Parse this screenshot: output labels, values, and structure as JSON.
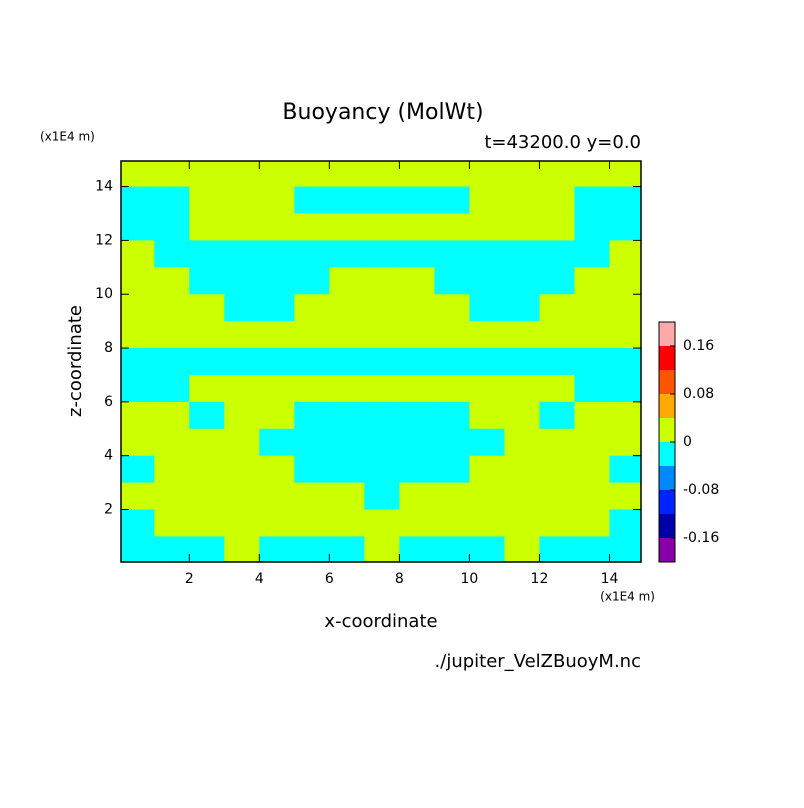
{
  "chart_data": {
    "type": "contour",
    "title": "Buoyancy (MolWt)",
    "subtitle": "t=43200.0 y=0.0",
    "x_label": "x-coordinate",
    "y_label": "z-coordinate",
    "x_units": "(x1E4 m)",
    "y_units": "(x1E4 m)",
    "source": "./jupiter_VelZBuoyM.nc",
    "xlim": [
      0.05,
      14.9
    ],
    "ylim": [
      0.05,
      14.95
    ],
    "xticks": [
      2,
      4,
      6,
      8,
      10,
      12,
      14
    ],
    "yticks": [
      2,
      4,
      6,
      8,
      10,
      12,
      14
    ],
    "x": [
      0.5,
      1.5,
      2.5,
      3.5,
      4.5,
      5.5,
      6.5,
      7.5,
      8.5,
      9.5,
      10.5,
      11.5,
      12.5,
      13.5,
      14.5
    ],
    "y": [
      14.5,
      13.5,
      12.5,
      11.5,
      10.5,
      9.5,
      8.5,
      7.5,
      6.5,
      5.5,
      4.5,
      3.5,
      2.5,
      1.5,
      0.5
    ],
    "z": [
      [
        0.02,
        0.02,
        0.02,
        0.02,
        0.02,
        0.02,
        0.02,
        0.02,
        0.02,
        0.02,
        0.02,
        0.02,
        0.02,
        0.02,
        0.02
      ],
      [
        -0.02,
        -0.02,
        0.02,
        0.02,
        0.02,
        -0.02,
        -0.02,
        -0.02,
        -0.02,
        -0.02,
        0.02,
        0.02,
        0.02,
        -0.02,
        -0.02
      ],
      [
        -0.02,
        -0.02,
        0.02,
        0.02,
        0.02,
        0.02,
        0.02,
        0.02,
        0.02,
        0.02,
        0.02,
        0.02,
        0.02,
        -0.02,
        -0.02
      ],
      [
        0.02,
        -0.02,
        -0.02,
        -0.02,
        -0.02,
        -0.02,
        -0.02,
        -0.02,
        -0.02,
        -0.02,
        -0.02,
        -0.02,
        -0.02,
        -0.02,
        0.02
      ],
      [
        0.02,
        0.02,
        -0.02,
        -0.02,
        -0.02,
        -0.02,
        0.02,
        0.02,
        0.02,
        -0.02,
        -0.02,
        -0.02,
        -0.02,
        0.02,
        0.02
      ],
      [
        0.02,
        0.02,
        0.02,
        -0.02,
        -0.02,
        0.02,
        0.02,
        0.02,
        0.02,
        0.02,
        -0.02,
        -0.02,
        0.02,
        0.02,
        0.02
      ],
      [
        0.02,
        0.02,
        0.02,
        0.02,
        0.02,
        0.02,
        0.02,
        0.02,
        0.02,
        0.02,
        0.02,
        0.02,
        0.02,
        0.02,
        0.02
      ],
      [
        -0.02,
        -0.02,
        -0.02,
        -0.02,
        -0.02,
        -0.02,
        -0.02,
        -0.02,
        -0.02,
        -0.02,
        -0.02,
        -0.02,
        -0.02,
        -0.02,
        -0.02
      ],
      [
        -0.02,
        -0.02,
        0.02,
        0.02,
        0.02,
        0.02,
        0.02,
        0.02,
        0.02,
        0.02,
        0.02,
        0.02,
        0.02,
        -0.02,
        -0.02
      ],
      [
        0.02,
        0.02,
        -0.02,
        0.02,
        0.02,
        -0.02,
        -0.02,
        -0.02,
        -0.02,
        -0.02,
        0.02,
        0.02,
        -0.02,
        0.02,
        0.02
      ],
      [
        0.02,
        0.02,
        0.02,
        0.02,
        -0.02,
        -0.02,
        -0.02,
        -0.02,
        -0.02,
        -0.02,
        -0.02,
        0.02,
        0.02,
        0.02,
        0.02
      ],
      [
        -0.02,
        0.02,
        0.02,
        0.02,
        0.02,
        -0.02,
        -0.02,
        -0.02,
        -0.02,
        -0.02,
        0.02,
        0.02,
        0.02,
        0.02,
        -0.02
      ],
      [
        0.02,
        0.02,
        0.02,
        0.02,
        0.02,
        0.02,
        0.02,
        -0.02,
        0.02,
        0.02,
        0.02,
        0.02,
        0.02,
        0.02,
        0.02
      ],
      [
        -0.02,
        0.02,
        0.02,
        0.02,
        0.02,
        0.02,
        0.02,
        0.02,
        0.02,
        0.02,
        0.02,
        0.02,
        0.02,
        0.02,
        -0.02
      ],
      [
        -0.02,
        -0.02,
        -0.02,
        0.02,
        -0.02,
        -0.02,
        -0.02,
        0.02,
        -0.02,
        -0.02,
        -0.02,
        0.02,
        -0.02,
        -0.02,
        -0.02
      ]
    ],
    "levels": [
      -0.2,
      -0.16,
      -0.12,
      -0.08,
      -0.04,
      0,
      0.04,
      0.08,
      0.12,
      0.16,
      0.2
    ],
    "colors": [
      "#8800aa",
      "#0000aa",
      "#0022ff",
      "#0088ff",
      "#00ffff",
      "#ccff00",
      "#ffaa00",
      "#ff5500",
      "#ff0000",
      "#ffaaaa"
    ],
    "colorbar_ticks": [
      -0.16,
      -0.08,
      0,
      0.08,
      0.16
    ]
  }
}
